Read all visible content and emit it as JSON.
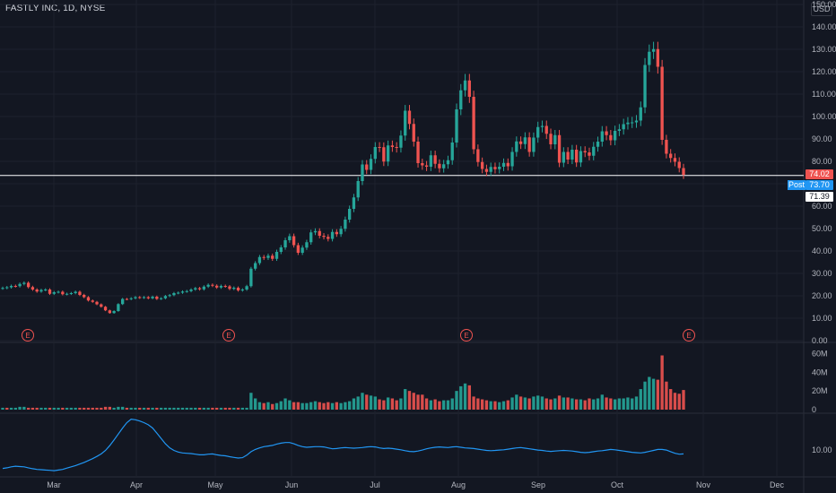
{
  "header": {
    "title": "FASTLY INC, 1D, NYSE",
    "currency": "USD"
  },
  "price_tags": {
    "last": "74.02",
    "post_label": "Post",
    "post": "73.70",
    "pre": "71.39"
  },
  "colors": {
    "up": "#26a69a",
    "down": "#ef5350",
    "line": "#2196f3",
    "grid": "#1e222d",
    "bg": "#131722"
  },
  "chart_data": [
    {
      "type": "candlestick",
      "title": "FASTLY INC, 1D, NYSE",
      "y_ticks": [
        "0.00",
        "10.00",
        "20.00",
        "30.00",
        "40.00",
        "50.00",
        "60.00",
        "70.00",
        "80.00",
        "90.00",
        "100.00",
        "110.00",
        "120.00",
        "130.00",
        "140.00",
        "150.00"
      ],
      "x_ticks": [
        "Mar",
        "Apr",
        "May",
        "Jun",
        "Jul",
        "Aug",
        "Sep",
        "Oct",
        "Nov",
        "Dec"
      ],
      "ylim": [
        0,
        150
      ],
      "horizontal_line": 73.7,
      "earnings_marker": "E",
      "earnings_positions": [
        "Feb",
        "May",
        "Aug",
        "Oct"
      ],
      "close": [
        23.5,
        23.8,
        24.4,
        24.3,
        25.3,
        25.8,
        23.9,
        22.8,
        21.9,
        22.6,
        22.8,
        20.9,
        21.6,
        21.8,
        20.7,
        20.9,
        21.2,
        21.8,
        20.4,
        19.4,
        17.9,
        17.3,
        16.2,
        15.1,
        13.5,
        12.3,
        13.2,
        16.3,
        18.6,
        18.5,
        18.9,
        19.4,
        19.1,
        19.4,
        18.9,
        19.6,
        18.6,
        18.9,
        19.9,
        20.3,
        21.2,
        21.4,
        21.9,
        22.1,
        22.8,
        23.4,
        22.9,
        24.1,
        24.9,
        24.5,
        23.7,
        24.4,
        24.2,
        23.1,
        23.6,
        22.4,
        22.8,
        24.3,
        32.1,
        34.6,
        37.3,
        36.9,
        37.9,
        36.5,
        39.6,
        41.6,
        44.8,
        46.6,
        42.6,
        39.2,
        41.5,
        43.9,
        48.3,
        48.9,
        46.8,
        46.3,
        45.4,
        48.5,
        47.5,
        49.9,
        54.0,
        58.8,
        63.9,
        71.2,
        78.6,
        76.2,
        81.1,
        86.4,
        86.3,
        79.9,
        87.1,
        86.4,
        86.1,
        91.5,
        102.6,
        96.7,
        88.8,
        79.2,
        78.2,
        77.6,
        82.7,
        78.9,
        76.9,
        78.7,
        80.5,
        88.4,
        103.2,
        111.7,
        116.1,
        108.8,
        85.4,
        79.7,
        76.6,
        75.3,
        77.5,
        76.5,
        77.6,
        79.3,
        77.8,
        84.2,
        88.9,
        87.7,
        90.7,
        84.2,
        90.6,
        95.3,
        95.8,
        92.3,
        87.6,
        91.7,
        79.4,
        84.2,
        80.8,
        85.2,
        79.5,
        84.6,
        84.0,
        82.5,
        86.5,
        88.8,
        93.4,
        91.7,
        89.4,
        93.6,
        94.3,
        96.6,
        97.3,
        97.4,
        98.2,
        104.1,
        123.0,
        128.9,
        130.1,
        122.2,
        89.6,
        83.4,
        81.5,
        79.8,
        77.0,
        74.0
      ],
      "volume_axis": {
        "ticks": [
          "0",
          "20M",
          "40M",
          "60M"
        ],
        "ylim": [
          0,
          70
        ]
      },
      "volume": [
        2,
        2,
        2,
        2,
        3,
        3,
        2,
        2,
        2,
        2,
        2,
        2,
        2,
        2,
        2,
        2,
        2,
        2,
        2,
        2,
        2,
        2,
        2,
        2,
        3,
        3,
        2,
        3,
        3,
        2,
        2,
        2,
        2,
        2,
        2,
        2,
        2,
        2,
        2,
        2,
        2,
        2,
        2,
        2,
        2,
        2,
        2,
        2,
        2,
        2,
        2,
        2,
        2,
        2,
        2,
        2,
        2,
        2,
        18,
        12,
        8,
        7,
        8,
        6,
        7,
        9,
        12,
        10,
        8,
        8,
        7,
        7,
        8,
        9,
        8,
        7,
        8,
        7,
        8,
        7,
        8,
        9,
        12,
        14,
        18,
        16,
        15,
        14,
        11,
        10,
        13,
        12,
        10,
        12,
        22,
        20,
        18,
        16,
        16,
        12,
        10,
        11,
        9,
        10,
        10,
        12,
        20,
        25,
        28,
        26,
        14,
        12,
        11,
        10,
        9,
        9,
        8,
        9,
        10,
        13,
        16,
        14,
        13,
        12,
        14,
        15,
        14,
        12,
        11,
        12,
        15,
        13,
        13,
        12,
        11,
        11,
        10,
        12,
        11,
        12,
        16,
        13,
        12,
        11,
        12,
        12,
        13,
        12,
        14,
        22,
        30,
        35,
        33,
        32,
        58,
        30,
        22,
        18,
        17,
        21
      ],
      "volume_up": [
        true,
        false,
        true,
        true,
        true,
        true,
        false,
        false,
        false,
        true,
        true,
        false,
        true,
        true,
        false,
        true,
        true,
        true,
        false,
        false,
        false,
        false,
        false,
        false,
        false,
        false,
        true,
        true,
        true,
        false,
        true,
        true,
        false,
        true,
        false,
        true,
        false,
        true,
        true,
        true,
        true,
        true,
        true,
        true,
        true,
        true,
        false,
        true,
        true,
        false,
        false,
        true,
        false,
        false,
        true,
        false,
        true,
        true,
        true,
        true,
        true,
        false,
        true,
        false,
        true,
        true,
        true,
        true,
        false,
        false,
        true,
        true,
        true,
        true,
        false,
        false,
        false,
        true,
        false,
        true,
        true,
        true,
        true,
        true,
        true,
        false,
        true,
        true,
        false,
        false,
        true,
        false,
        false,
        true,
        true,
        false,
        false,
        false,
        false,
        false,
        true,
        false,
        false,
        true,
        true,
        true,
        true,
        true,
        true,
        false,
        false,
        false,
        false,
        false,
        true,
        false,
        true,
        true,
        false,
        true,
        true,
        false,
        true,
        false,
        true,
        true,
        true,
        false,
        false,
        true,
        false,
        true,
        false,
        true,
        false,
        true,
        false,
        false,
        true,
        true,
        true,
        false,
        false,
        true,
        true,
        true,
        true,
        true,
        true,
        true,
        true,
        true,
        true,
        false,
        false,
        false,
        false,
        false,
        false,
        false
      ],
      "indicator_axis": {
        "ticks": [
          "10.00"
        ]
      },
      "indicator": [
        4.1,
        4.3,
        4.6,
        4.8,
        4.7,
        4.6,
        4.3,
        4.0,
        3.8,
        3.7,
        3.6,
        3.5,
        3.4,
        3.6,
        3.8,
        4.2,
        4.6,
        5.0,
        5.5,
        6.0,
        6.6,
        7.2,
        7.9,
        8.7,
        9.8,
        11.3,
        13.1,
        15.0,
        16.9,
        18.6,
        19.7,
        19.5,
        19.1,
        18.6,
        17.9,
        16.9,
        15.3,
        13.6,
        11.9,
        10.6,
        9.8,
        9.3,
        9.0,
        8.9,
        8.8,
        8.6,
        8.4,
        8.4,
        8.6,
        8.7,
        8.4,
        8.2,
        8.1,
        7.8,
        7.6,
        7.4,
        7.5,
        8.3,
        9.4,
        10.1,
        10.6,
        11.0,
        11.2,
        11.4,
        11.8,
        12.1,
        12.3,
        12.3,
        11.9,
        11.4,
        11.0,
        10.8,
        10.9,
        11.0,
        11.0,
        10.9,
        10.6,
        10.3,
        10.4,
        10.6,
        10.7,
        10.6,
        10.5,
        10.6,
        10.7,
        10.9,
        11.0,
        10.9,
        10.6,
        10.4,
        10.5,
        10.4,
        10.2,
        10.0,
        9.7,
        9.5,
        9.4,
        9.6,
        9.9,
        10.3,
        10.6,
        10.8,
        10.9,
        10.8,
        10.7,
        10.9,
        11.0,
        10.8,
        10.6,
        10.5,
        10.4,
        10.2,
        10.0,
        9.8,
        9.7,
        9.8,
        9.9,
        10.0,
        10.2,
        10.4,
        10.6,
        10.7,
        10.5,
        10.3,
        10.1,
        9.9,
        9.8,
        9.6,
        9.5,
        9.6,
        9.7,
        9.8,
        9.7,
        9.6,
        9.4,
        9.2,
        9.1,
        9.2,
        9.4,
        9.6,
        9.7,
        9.9,
        10.1,
        10.0,
        9.8,
        9.6,
        9.4,
        9.2,
        9.1,
        9.0,
        9.2,
        9.5,
        9.8,
        10.1,
        10.1,
        9.9,
        9.4,
        8.9,
        8.6,
        8.7
      ]
    }
  ]
}
